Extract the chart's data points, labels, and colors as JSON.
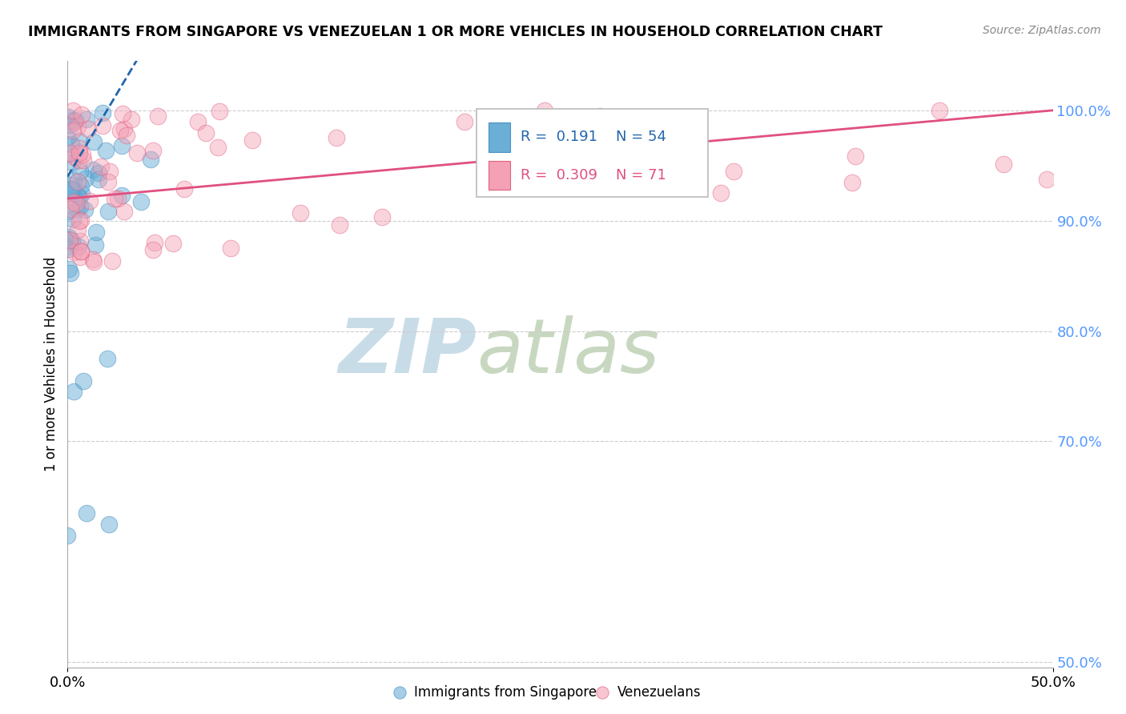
{
  "title": "IMMIGRANTS FROM SINGAPORE VS VENEZUELAN 1 OR MORE VEHICLES IN HOUSEHOLD CORRELATION CHART",
  "source": "Source: ZipAtlas.com",
  "ylabel": "1 or more Vehicles in Household",
  "r_singapore": 0.191,
  "n_singapore": 54,
  "r_venezuelan": 0.309,
  "n_venezuelan": 71,
  "color_singapore": "#6baed6",
  "color_singaporeedge": "#4a90c4",
  "color_venezuelan": "#f4a0b5",
  "color_venezuelanedge": "#e06080",
  "trendline_color_singapore": "#2166ac",
  "trendline_color_venezuelan": "#e05080",
  "right_tick_color": "#5599ff",
  "xlim": [
    0.0,
    0.5
  ],
  "ylim": [
    0.495,
    1.045
  ],
  "yticks": [
    0.5,
    0.7,
    0.8,
    0.9,
    1.0
  ],
  "ytick_labels": [
    "50.0%",
    "70.0%",
    "80.0%",
    "90.0%",
    "100.0%"
  ],
  "xtick_labels": [
    "0.0%",
    "50.0%"
  ],
  "legend_label_singapore": "Immigrants from Singapore",
  "legend_label_venezuelan": "Venezuelans",
  "watermark_zip": "ZIP",
  "watermark_atlas": "atlas",
  "watermark_color_zip": "#c8dce8",
  "watermark_color_atlas": "#c8d8c0"
}
